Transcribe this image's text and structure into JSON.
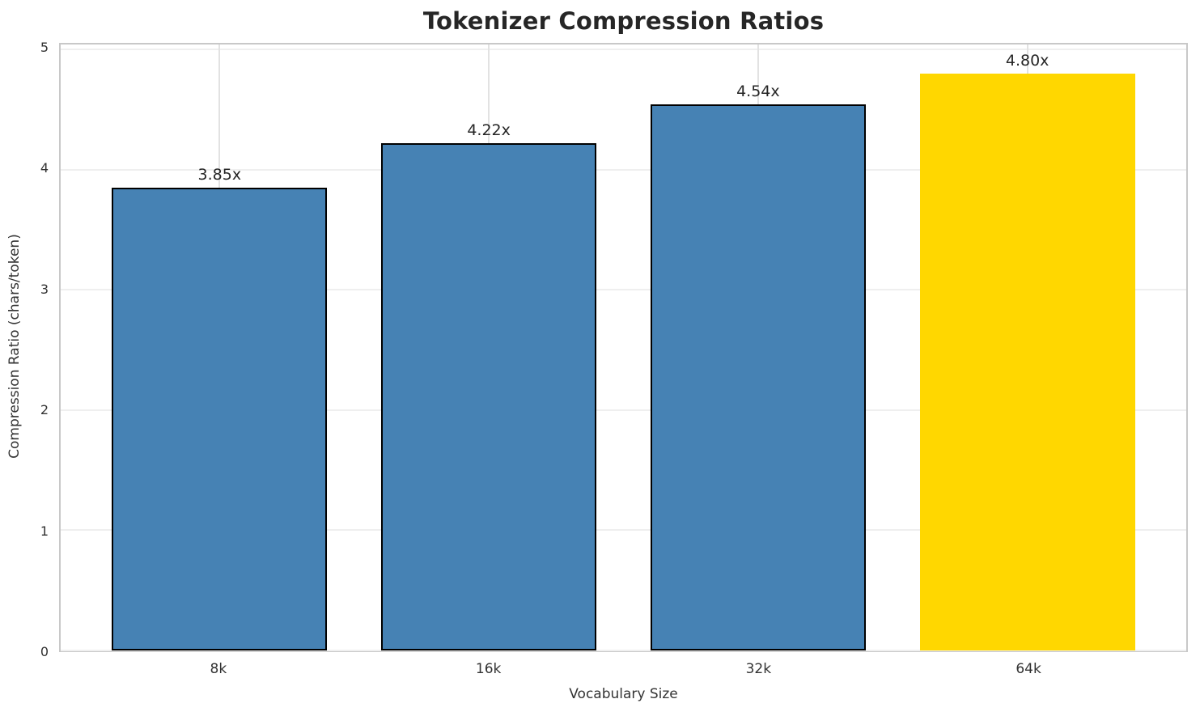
{
  "chart_data": {
    "type": "bar",
    "title": "Tokenizer Compression Ratios",
    "xlabel": "Vocabulary Size",
    "ylabel": "Compression Ratio (chars/token)",
    "categories": [
      "8k",
      "16k",
      "32k",
      "64k"
    ],
    "values": [
      3.85,
      4.22,
      4.54,
      4.8
    ],
    "bar_labels": [
      "3.85x",
      "4.22x",
      "4.54x",
      "4.80x"
    ],
    "bar_colors": [
      "#4682b4",
      "#4682b4",
      "#4682b4",
      "#ffd700"
    ],
    "bar_edge_colors": [
      "#000000",
      "#000000",
      "#000000",
      "none"
    ],
    "yticks": [
      0,
      1,
      2,
      3,
      4,
      5
    ],
    "ylim": [
      0,
      5.04
    ],
    "grid": "on",
    "legend_position": "none",
    "colors": {
      "grid_horizontal": "#efefef",
      "grid_vertical": "#e2e2e2",
      "spine": "#c8c8c8",
      "text": "#262626",
      "tick_text": "#333333"
    }
  }
}
